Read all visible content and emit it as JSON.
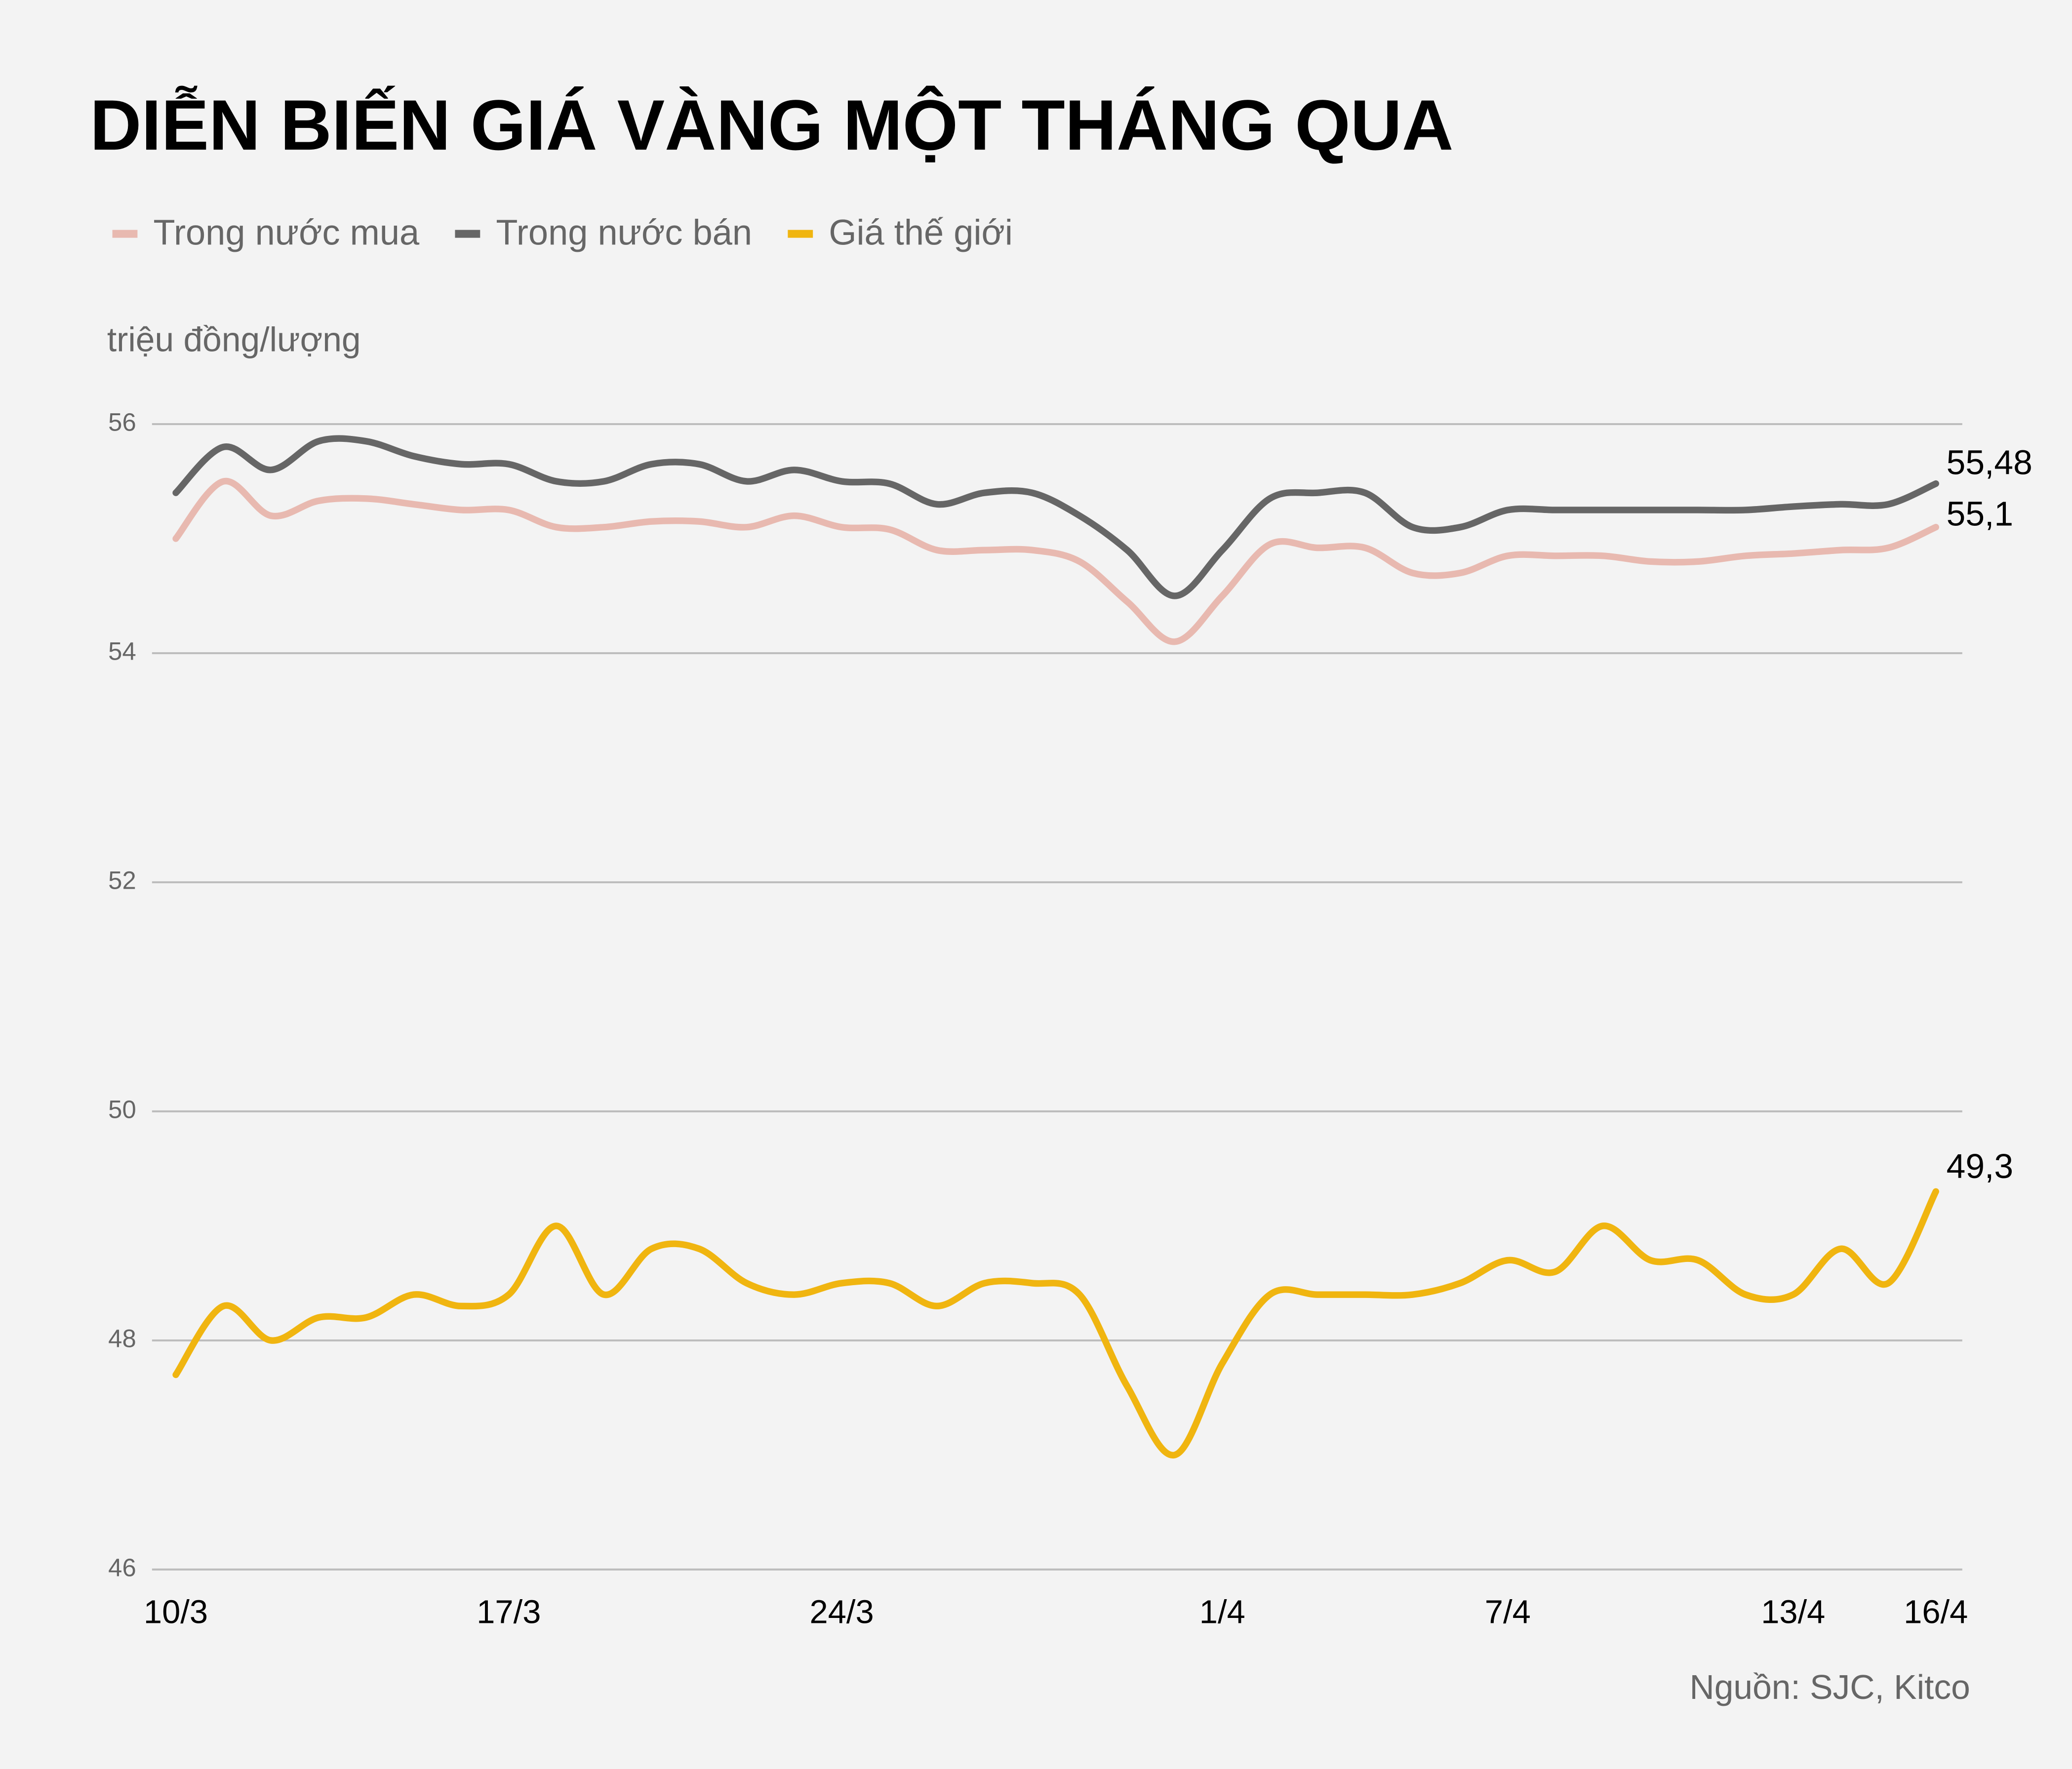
{
  "chart_data": {
    "type": "line",
    "title": "DIỄN BIẾN GIÁ VÀNG MỘT THÁNG QUA",
    "y_label": "triệu đồng/lượng",
    "source": "Nguồn: SJC, Kitco",
    "categories": [
      "10/3",
      null,
      null,
      null,
      null,
      null,
      null,
      "17/3",
      null,
      null,
      null,
      null,
      null,
      null,
      "24/3",
      null,
      null,
      null,
      null,
      null,
      null,
      null,
      "1/4",
      null,
      null,
      null,
      null,
      null,
      "7/4",
      null,
      null,
      null,
      null,
      null,
      "13/4",
      null,
      null,
      "16/4"
    ],
    "ylim": [
      46,
      56
    ],
    "yticks": [
      46,
      48,
      50,
      52,
      54,
      56
    ],
    "grid": true,
    "series": [
      {
        "name": "Trong nước mua",
        "color": "#e8b9b0",
        "values": [
          55.0,
          55.5,
          55.2,
          55.33,
          55.35,
          55.3,
          55.25,
          55.25,
          55.1,
          55.1,
          55.15,
          55.15,
          55.1,
          55.2,
          55.1,
          55.08,
          54.9,
          54.9,
          54.9,
          54.8,
          54.45,
          54.1,
          54.5,
          54.95,
          54.92,
          54.92,
          54.7,
          54.7,
          54.85,
          54.85,
          54.85,
          54.8,
          54.8,
          54.85,
          54.87,
          54.9,
          54.92,
          55.1
        ],
        "value_labels": [
          null,
          null,
          null,
          null,
          null,
          null,
          null,
          null,
          null,
          null,
          null,
          null,
          null,
          null,
          null,
          null,
          null,
          null,
          null,
          null,
          null,
          null,
          null,
          null,
          null,
          null,
          null,
          null,
          null,
          null,
          null,
          null,
          null,
          null,
          null,
          null,
          null,
          "55,1"
        ]
      },
      {
        "name": "Trong nước bán",
        "color": "#666666",
        "values": [
          55.4,
          55.8,
          55.6,
          55.85,
          55.85,
          55.72,
          55.65,
          55.65,
          55.5,
          55.5,
          55.65,
          55.65,
          55.5,
          55.6,
          55.5,
          55.48,
          55.3,
          55.4,
          55.4,
          55.2,
          54.9,
          54.5,
          54.9,
          55.35,
          55.4,
          55.4,
          55.1,
          55.1,
          55.25,
          55.25,
          55.25,
          55.25,
          55.25,
          55.25,
          55.28,
          55.3,
          55.3,
          55.48
        ],
        "value_labels": [
          null,
          null,
          null,
          null,
          null,
          null,
          null,
          null,
          null,
          null,
          null,
          null,
          null,
          null,
          null,
          null,
          null,
          null,
          null,
          null,
          null,
          null,
          null,
          null,
          null,
          null,
          null,
          null,
          null,
          null,
          null,
          null,
          null,
          null,
          null,
          null,
          null,
          "55,48"
        ]
      },
      {
        "name": "Giá thế giới",
        "color": "#f0b510",
        "values": [
          47.7,
          48.3,
          48.0,
          48.2,
          48.2,
          48.4,
          48.3,
          48.4,
          49.0,
          48.4,
          48.8,
          48.8,
          48.5,
          48.4,
          48.5,
          48.5,
          48.3,
          48.5,
          48.5,
          48.4,
          47.6,
          47.0,
          47.8,
          48.4,
          48.4,
          48.4,
          48.4,
          48.5,
          48.7,
          48.6,
          49.0,
          48.7,
          48.7,
          48.4,
          48.4,
          48.8,
          48.5,
          49.3
        ],
        "value_labels": [
          null,
          null,
          null,
          null,
          null,
          null,
          null,
          null,
          null,
          null,
          null,
          null,
          null,
          null,
          null,
          null,
          null,
          null,
          null,
          null,
          null,
          null,
          null,
          null,
          null,
          null,
          null,
          null,
          null,
          null,
          null,
          null,
          null,
          null,
          null,
          null,
          null,
          "49,3"
        ]
      }
    ]
  }
}
